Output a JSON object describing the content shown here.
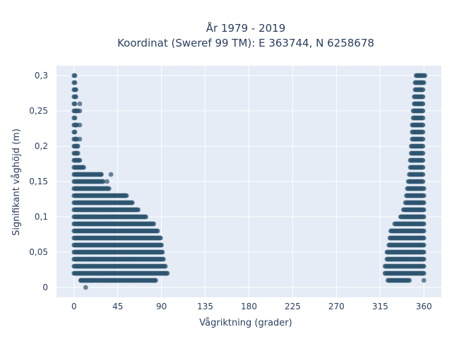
{
  "chart_data": {
    "type": "scatter",
    "title_line1": "År 1979 - 2019",
    "title_line2": "Koordinat (Sweref 99 TM): E 363744, N 6258678",
    "xlabel": "Vågriktning (grader)",
    "ylabel": "Signifikant våghöjd (m)",
    "xlim": [
      -18,
      378
    ],
    "ylim": [
      -0.014,
      0.314
    ],
    "x_ticks": [
      0,
      45,
      90,
      135,
      180,
      225,
      270,
      315,
      360
    ],
    "x_tick_labels": [
      "0",
      "45",
      "90",
      "135",
      "180",
      "225",
      "270",
      "315",
      "360"
    ],
    "y_ticks": [
      0,
      0.05,
      0.1,
      0.15,
      0.2,
      0.25,
      0.3
    ],
    "y_tick_labels": [
      "0",
      "0,05",
      "0,1",
      "0,15",
      "0,2",
      "0,25",
      "0,3"
    ],
    "grid": true,
    "plot_background": "#e5ecf6",
    "marker_color": "#2f5570",
    "rows": [
      {
        "y": 0.01,
        "xmin": 7,
        "xmax": 84,
        "rmin": 323,
        "rmax": 345
      },
      {
        "y": 0.02,
        "xmin": 0,
        "xmax": 96,
        "rmin": 320,
        "rmax": 360
      },
      {
        "y": 0.03,
        "xmin": 0,
        "xmax": 94,
        "rmin": 320,
        "rmax": 360
      },
      {
        "y": 0.04,
        "xmin": 0,
        "xmax": 92,
        "rmin": 322,
        "rmax": 360
      },
      {
        "y": 0.05,
        "xmin": 0,
        "xmax": 91,
        "rmin": 322,
        "rmax": 360
      },
      {
        "y": 0.06,
        "xmin": 0,
        "xmax": 90,
        "rmin": 324,
        "rmax": 360
      },
      {
        "y": 0.07,
        "xmin": 0,
        "xmax": 89,
        "rmin": 325,
        "rmax": 360
      },
      {
        "y": 0.08,
        "xmin": 0,
        "xmax": 86,
        "rmin": 326,
        "rmax": 360
      },
      {
        "y": 0.09,
        "xmin": 0,
        "xmax": 82,
        "rmin": 330,
        "rmax": 360
      },
      {
        "y": 0.1,
        "xmin": 0,
        "xmax": 74,
        "rmin": 336,
        "rmax": 360
      },
      {
        "y": 0.11,
        "xmin": 0,
        "xmax": 66,
        "rmin": 339,
        "rmax": 360
      },
      {
        "y": 0.12,
        "xmin": 0,
        "xmax": 60,
        "rmin": 341,
        "rmax": 360
      },
      {
        "y": 0.13,
        "xmin": 0,
        "xmax": 54,
        "rmin": 342,
        "rmax": 360
      },
      {
        "y": 0.14,
        "xmin": 0,
        "xmax": 36,
        "rmin": 343,
        "rmax": 360
      },
      {
        "y": 0.15,
        "xmin": 0,
        "xmax": 30,
        "rmin": 344,
        "rmax": 359
      },
      {
        "y": 0.16,
        "xmin": 0,
        "xmax": 28,
        "rmin": 345,
        "rmax": 359
      },
      {
        "y": 0.17,
        "xmin": 0,
        "xmax": 10,
        "rmin": 346,
        "rmax": 359
      },
      {
        "y": 0.18,
        "xmin": 0,
        "xmax": 6,
        "rmin": 346,
        "rmax": 359
      },
      {
        "y": 0.19,
        "xmin": 0,
        "xmax": 4,
        "rmin": 347,
        "rmax": 359
      },
      {
        "y": 0.2,
        "xmin": 0,
        "xmax": 4,
        "rmin": 347,
        "rmax": 359
      },
      {
        "y": 0.21,
        "xmin": 0,
        "xmax": 3,
        "rmin": 348,
        "rmax": 359
      },
      {
        "y": 0.22,
        "xmin": 0,
        "xmax": 1,
        "rmin": 348,
        "rmax": 359
      },
      {
        "y": 0.23,
        "xmin": 0,
        "xmax": 3,
        "rmin": 348,
        "rmax": 359
      },
      {
        "y": 0.24,
        "xmin": 0,
        "xmax": 1,
        "rmin": 349,
        "rmax": 359
      },
      {
        "y": 0.25,
        "xmin": 0,
        "xmax": 4,
        "rmin": 349,
        "rmax": 359
      },
      {
        "y": 0.26,
        "xmin": 0,
        "xmax": 1,
        "rmin": 350,
        "rmax": 359
      },
      {
        "y": 0.27,
        "xmin": 0,
        "xmax": 2,
        "rmin": 350,
        "rmax": 359
      },
      {
        "y": 0.28,
        "xmin": 0,
        "xmax": 2,
        "rmin": 351,
        "rmax": 359
      },
      {
        "y": 0.29,
        "xmin": 0,
        "xmax": 1,
        "rmin": 351,
        "rmax": 360
      },
      {
        "y": 0.3,
        "xmin": 0,
        "xmax": 1,
        "rmin": 352,
        "rmax": 361
      }
    ],
    "outliers": [
      {
        "x": 12,
        "y": 0.0
      },
      {
        "x": 7,
        "y": 0.01
      },
      {
        "x": 13,
        "y": 0.01
      },
      {
        "x": 18,
        "y": 0.01
      },
      {
        "x": 36,
        "y": 0.01
      },
      {
        "x": 42,
        "y": 0.01
      },
      {
        "x": 58,
        "y": 0.01
      },
      {
        "x": 83,
        "y": 0.01
      },
      {
        "x": 360,
        "y": 0.01
      },
      {
        "x": 28,
        "y": 0.16
      },
      {
        "x": 38,
        "y": 0.16
      },
      {
        "x": 34,
        "y": 0.15
      },
      {
        "x": 50,
        "y": 0.13
      },
      {
        "x": 6,
        "y": 0.21
      },
      {
        "x": 6,
        "y": 0.23
      },
      {
        "x": 6,
        "y": 0.25
      },
      {
        "x": 6,
        "y": 0.26
      }
    ]
  }
}
